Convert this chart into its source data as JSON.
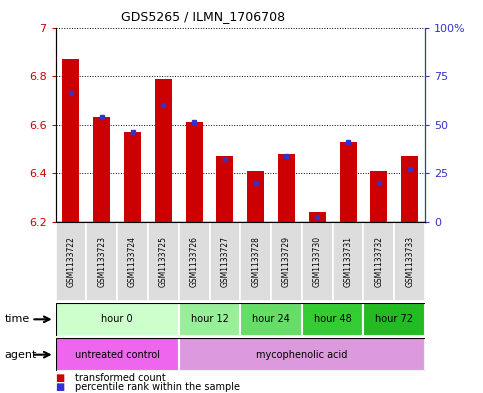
{
  "title": "GDS5265 / ILMN_1706708",
  "samples": [
    "GSM1133722",
    "GSM1133723",
    "GSM1133724",
    "GSM1133725",
    "GSM1133726",
    "GSM1133727",
    "GSM1133728",
    "GSM1133729",
    "GSM1133730",
    "GSM1133731",
    "GSM1133732",
    "GSM1133733"
  ],
  "red_values": [
    6.87,
    6.63,
    6.57,
    6.79,
    6.61,
    6.47,
    6.41,
    6.48,
    6.24,
    6.53,
    6.41,
    6.47
  ],
  "blue_values": [
    6.73,
    6.63,
    6.57,
    6.68,
    6.61,
    6.46,
    6.36,
    6.47,
    6.22,
    6.53,
    6.36,
    6.42
  ],
  "ymin": 6.2,
  "ymax": 7.0,
  "yticks_red": [
    6.2,
    6.4,
    6.6,
    6.8,
    7.0
  ],
  "ytick_labels_red": [
    "6.2",
    "6.4",
    "6.6",
    "6.8",
    "7"
  ],
  "yticks_blue": [
    0,
    25,
    50,
    75,
    100
  ],
  "ytick_labels_blue": [
    "0",
    "25",
    "50",
    "75",
    "100%"
  ],
  "red_color": "#cc0000",
  "blue_color": "#3333cc",
  "time_groups": [
    {
      "label": "hour 0",
      "start": 0,
      "end": 4,
      "color": "#ccffcc"
    },
    {
      "label": "hour 12",
      "start": 4,
      "end": 6,
      "color": "#99ee99"
    },
    {
      "label": "hour 24",
      "start": 6,
      "end": 8,
      "color": "#66dd66"
    },
    {
      "label": "hour 48",
      "start": 8,
      "end": 10,
      "color": "#33cc33"
    },
    {
      "label": "hour 72",
      "start": 10,
      "end": 12,
      "color": "#22bb22"
    }
  ],
  "agent_groups": [
    {
      "label": "untreated control",
      "start": 0,
      "end": 4,
      "color": "#ee66ee"
    },
    {
      "label": "mycophenolic acid",
      "start": 4,
      "end": 12,
      "color": "#dd99dd"
    }
  ],
  "legend_red": "transformed count",
  "legend_blue": "percentile rank within the sample",
  "bar_width": 0.55,
  "grid_color": "black"
}
